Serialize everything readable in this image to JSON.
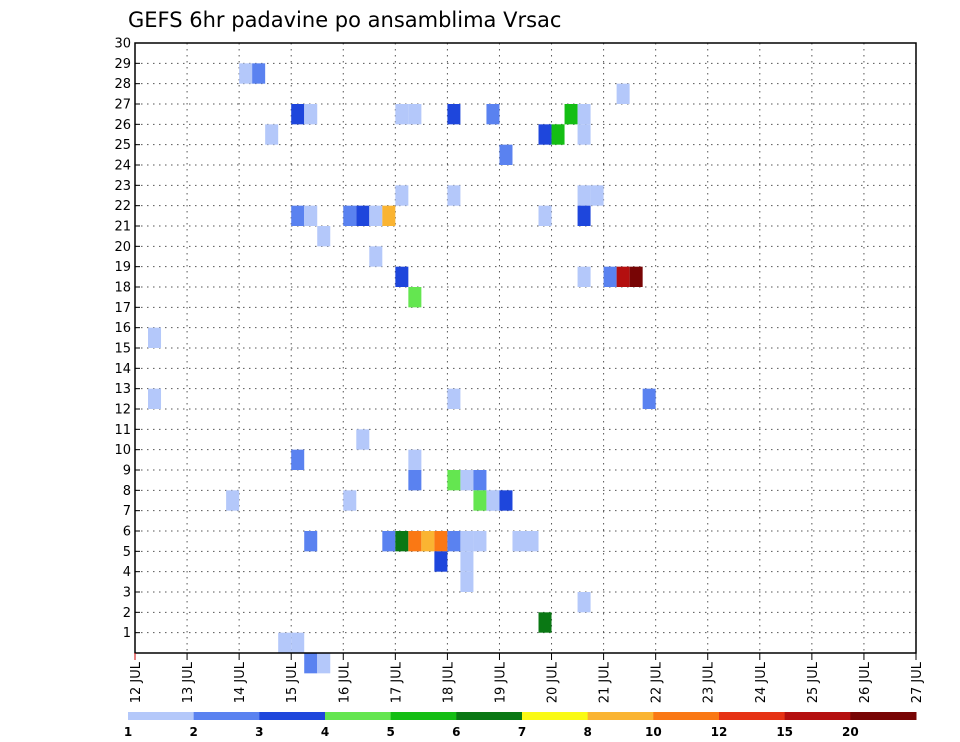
{
  "chart_data": {
    "type": "heatmap",
    "title": "GEFS 6hr padavine po ansamblima Vrsac",
    "xlabel": "",
    "ylabel": "",
    "x_ticks": [
      "12 JUL",
      "13 JUL",
      "14 JUL",
      "15 JUL",
      "16 JUL",
      "17 JUL",
      "18 JUL",
      "19 JUL",
      "20 JUL",
      "21 JUL",
      "22 JUL",
      "23 JUL",
      "24 JUL",
      "25 JUL",
      "26 JUL",
      "27 JUL"
    ],
    "xlim": [
      0,
      60
    ],
    "ylim": [
      0,
      30
    ],
    "y_ticks": [
      1,
      2,
      3,
      4,
      5,
      6,
      7,
      8,
      9,
      10,
      11,
      12,
      13,
      14,
      15,
      16,
      17,
      18,
      19,
      20,
      21,
      22,
      23,
      24,
      25,
      26,
      27,
      28,
      29,
      30
    ],
    "grid": true,
    "legend": {
      "position": "bottom",
      "labels": [
        "1",
        "2",
        "3",
        "4",
        "5",
        "6",
        "7",
        "8",
        "10",
        "12",
        "15",
        "20"
      ],
      "colors": [
        "#b4c8fa",
        "#5a82f0",
        "#1e46dc",
        "#64e650",
        "#14be14",
        "#0a7814",
        "#fafa14",
        "#fab432",
        "#fa7814",
        "#e63214",
        "#b40f0f",
        "#780505"
      ]
    },
    "cells": [
      {
        "x": 1,
        "y": 15,
        "v": 1
      },
      {
        "x": 1,
        "y": 12,
        "v": 1
      },
      {
        "x": 7,
        "y": 7,
        "v": 1
      },
      {
        "x": 8,
        "y": 28,
        "v": 1
      },
      {
        "x": 9,
        "y": 28,
        "v": 2
      },
      {
        "x": 10,
        "y": 25,
        "v": 1
      },
      {
        "x": 11,
        "y": 0,
        "v": 1
      },
      {
        "x": 12,
        "y": 26,
        "v": 3
      },
      {
        "x": 12,
        "y": 21,
        "v": 2
      },
      {
        "x": 12,
        "y": 9,
        "v": 2
      },
      {
        "x": 12,
        "y": 0,
        "v": 1
      },
      {
        "x": 13,
        "y": 26,
        "v": 1
      },
      {
        "x": 13,
        "y": 21,
        "v": 1
      },
      {
        "x": 13,
        "y": 5,
        "v": 2
      },
      {
        "x": 13,
        "y": -1,
        "v": 2
      },
      {
        "x": 14,
        "y": 20,
        "v": 1
      },
      {
        "x": 14,
        "y": -1,
        "v": 1
      },
      {
        "x": 16,
        "y": 21,
        "v": 2
      },
      {
        "x": 16,
        "y": 7,
        "v": 1
      },
      {
        "x": 17,
        "y": 21,
        "v": 3
      },
      {
        "x": 17,
        "y": 10,
        "v": 1
      },
      {
        "x": 18,
        "y": 21,
        "v": 1
      },
      {
        "x": 18,
        "y": 19,
        "v": 1
      },
      {
        "x": 19,
        "y": 21,
        "v": 8
      },
      {
        "x": 19,
        "y": 5,
        "v": 2
      },
      {
        "x": 20,
        "y": 5,
        "v": 6
      },
      {
        "x": 20,
        "y": 18,
        "v": 3
      },
      {
        "x": 20,
        "y": 22,
        "v": 1
      },
      {
        "x": 20,
        "y": 26,
        "v": 1
      },
      {
        "x": 21,
        "y": 26,
        "v": 1
      },
      {
        "x": 21,
        "y": 17,
        "v": 4
      },
      {
        "x": 21,
        "y": 9,
        "v": 1
      },
      {
        "x": 21,
        "y": 8,
        "v": 2
      },
      {
        "x": 21,
        "y": 5,
        "v": 10
      },
      {
        "x": 22,
        "y": 5,
        "v": 8
      },
      {
        "x": 23,
        "y": 5,
        "v": 10
      },
      {
        "x": 23,
        "y": 4,
        "v": 3
      },
      {
        "x": 24,
        "y": 26,
        "v": 3
      },
      {
        "x": 24,
        "y": 22,
        "v": 1
      },
      {
        "x": 24,
        "y": 12,
        "v": 1
      },
      {
        "x": 24,
        "y": 8,
        "v": 4
      },
      {
        "x": 24,
        "y": 5,
        "v": 2
      },
      {
        "x": 25,
        "y": 8,
        "v": 1
      },
      {
        "x": 25,
        "y": 5,
        "v": 1
      },
      {
        "x": 25,
        "y": 4,
        "v": 1
      },
      {
        "x": 25,
        "y": 3,
        "v": 1
      },
      {
        "x": 26,
        "y": 8,
        "v": 2
      },
      {
        "x": 26,
        "y": 7,
        "v": 4
      },
      {
        "x": 26,
        "y": 5,
        "v": 1
      },
      {
        "x": 27,
        "y": 26,
        "v": 2
      },
      {
        "x": 27,
        "y": 7,
        "v": 1
      },
      {
        "x": 27,
        "y": 7,
        "v": 1
      },
      {
        "x": 28,
        "y": 24,
        "v": 2
      },
      {
        "x": 28,
        "y": 7,
        "v": 3
      },
      {
        "x": 29,
        "y": 5,
        "v": 1
      },
      {
        "x": 30,
        "y": 5,
        "v": 1
      },
      {
        "x": 31,
        "y": 25,
        "v": 3
      },
      {
        "x": 31,
        "y": 21,
        "v": 1
      },
      {
        "x": 31,
        "y": 1,
        "v": 6
      },
      {
        "x": 32,
        "y": 25,
        "v": 5
      },
      {
        "x": 33,
        "y": 26,
        "v": 5
      },
      {
        "x": 34,
        "y": 26,
        "v": 1
      },
      {
        "x": 34,
        "y": 25,
        "v": 1
      },
      {
        "x": 34,
        "y": 22,
        "v": 1
      },
      {
        "x": 34,
        "y": 21,
        "v": 3
      },
      {
        "x": 34,
        "y": 18,
        "v": 1
      },
      {
        "x": 34,
        "y": 2,
        "v": 1
      },
      {
        "x": 35,
        "y": 22,
        "v": 1
      },
      {
        "x": 36,
        "y": 18,
        "v": 2
      },
      {
        "x": 37,
        "y": 27,
        "v": 1
      },
      {
        "x": 37,
        "y": 18,
        "v": 15
      },
      {
        "x": 38,
        "y": 18,
        "v": 20
      },
      {
        "x": 39,
        "y": 12,
        "v": 2
      }
    ]
  }
}
